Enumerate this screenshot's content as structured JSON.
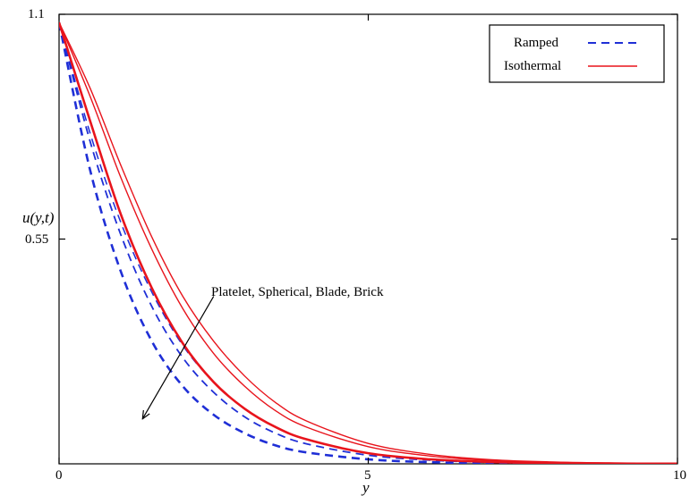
{
  "chart_data": {
    "type": "line",
    "xlabel": "y",
    "ylabel": "u(y,t)",
    "xlim": [
      0,
      10
    ],
    "ylim": [
      0,
      1.1
    ],
    "x_ticks": [
      "0",
      "5",
      "10"
    ],
    "y_ticks": [
      "0.55",
      "1.1"
    ],
    "grid": false,
    "legend_placement": "top-right",
    "legend": [
      {
        "label": "Ramped",
        "style": "dashed",
        "color": "#1f2fd6"
      },
      {
        "label": "Isothermal",
        "style": "solid",
        "color": "#e8141c"
      }
    ],
    "annotation": {
      "text": "Platelet, Spherical, Blade, Brick",
      "arrow_from": [
        2.5,
        0.41
      ],
      "arrow_to": [
        1.35,
        0.11
      ]
    },
    "x": [
      0,
      0.5,
      1,
      1.5,
      2,
      2.5,
      3,
      3.5,
      4,
      5,
      6,
      7,
      8,
      9,
      10
    ],
    "series": [
      {
        "style": "dashed",
        "color": "#1f2fd6",
        "width": 2.6,
        "values": [
          1.08,
          0.72,
          0.47,
          0.3,
          0.19,
          0.12,
          0.075,
          0.045,
          0.028,
          0.011,
          0.004,
          0.0015,
          0.0006,
          0.0002,
          0.0001
        ]
      },
      {
        "style": "dashed",
        "color": "#1f2fd6",
        "width": 1.8,
        "values": [
          1.08,
          0.79,
          0.56,
          0.385,
          0.26,
          0.175,
          0.115,
          0.075,
          0.049,
          0.021,
          0.009,
          0.0035,
          0.0014,
          0.0005,
          0.0002
        ]
      },
      {
        "style": "dashed",
        "color": "#1f2fd6",
        "width": 1.5,
        "values": [
          1.08,
          0.81,
          0.59,
          0.42,
          0.29,
          0.2,
          0.135,
          0.09,
          0.06,
          0.026,
          0.011,
          0.0045,
          0.0018,
          0.0007,
          0.0003
        ]
      },
      {
        "style": "solid",
        "color": "#e8141c",
        "width": 2.6,
        "values": [
          1.08,
          0.84,
          0.61,
          0.43,
          0.295,
          0.2,
          0.135,
          0.09,
          0.06,
          0.026,
          0.011,
          0.0045,
          0.0018,
          0.0007,
          0.0003
        ]
      },
      {
        "style": "solid",
        "color": "#e8141c",
        "width": 1.4,
        "values": [
          1.08,
          0.9,
          0.7,
          0.525,
          0.38,
          0.27,
          0.19,
          0.13,
          0.09,
          0.042,
          0.019,
          0.008,
          0.0035,
          0.0015,
          0.0006
        ]
      },
      {
        "style": "solid",
        "color": "#e8141c",
        "width": 1.4,
        "values": [
          1.08,
          0.92,
          0.73,
          0.555,
          0.41,
          0.3,
          0.215,
          0.15,
          0.105,
          0.05,
          0.023,
          0.01,
          0.0045,
          0.002,
          0.0008
        ]
      }
    ]
  }
}
